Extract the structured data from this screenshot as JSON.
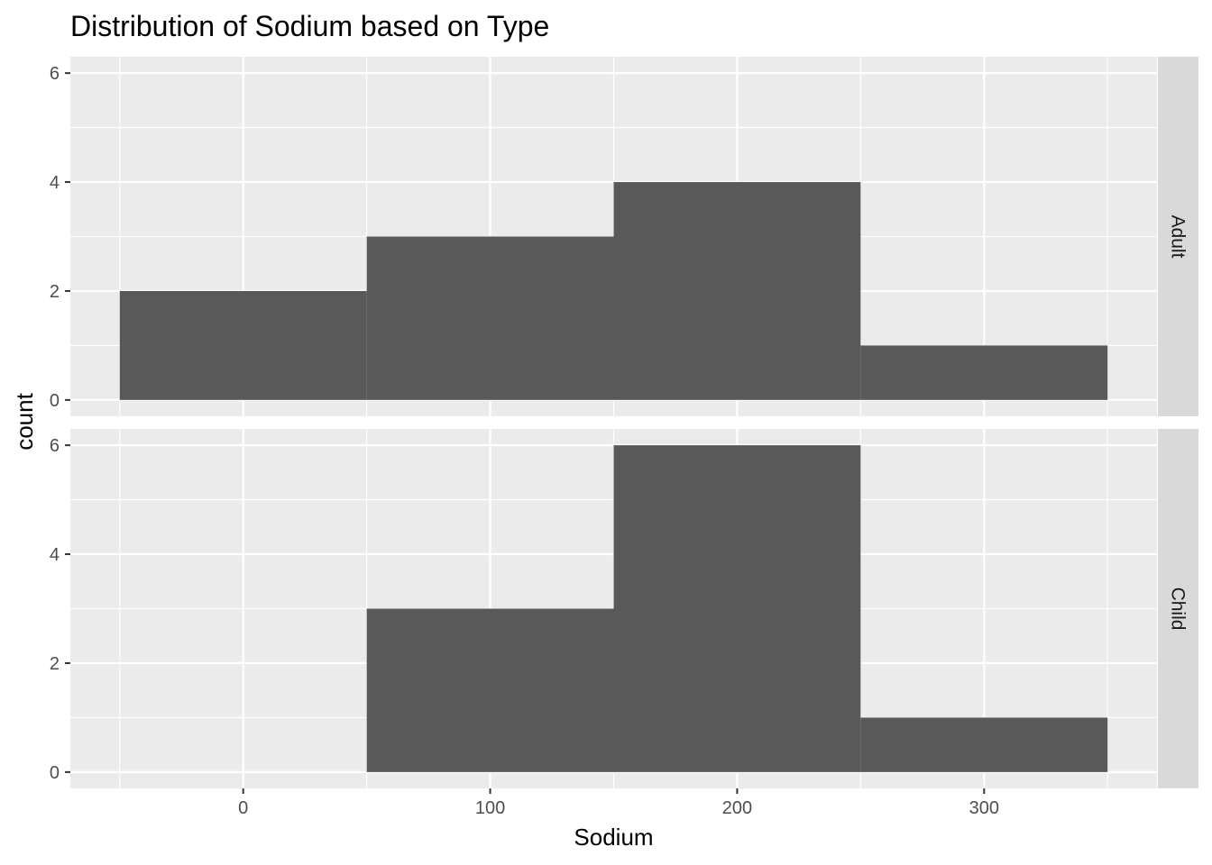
{
  "chart_data": {
    "type": "bar",
    "title": "Distribution of Sodium based on Type",
    "xlabel": "Sodium",
    "ylabel": "count",
    "xlim": [
      -70,
      370
    ],
    "ylim": [
      -0.3,
      6.3
    ],
    "x_ticks": [
      0,
      100,
      200,
      300
    ],
    "x_tick_labels": [
      "0",
      "100",
      "200",
      "300"
    ],
    "y_ticks": [
      0,
      2,
      4,
      6
    ],
    "y_tick_labels": [
      "0",
      "2",
      "4",
      "6"
    ],
    "bin_edges": [
      -50,
      50,
      150,
      250,
      350
    ],
    "bar_color": "#595959",
    "panel_background": "#ebebeb",
    "strip_background": "#d9d9d9",
    "grid": true,
    "facets": [
      {
        "label": "Adult",
        "counts": [
          2,
          3,
          4,
          1
        ]
      },
      {
        "label": "Child",
        "counts": [
          0,
          3,
          6,
          1
        ]
      }
    ]
  }
}
